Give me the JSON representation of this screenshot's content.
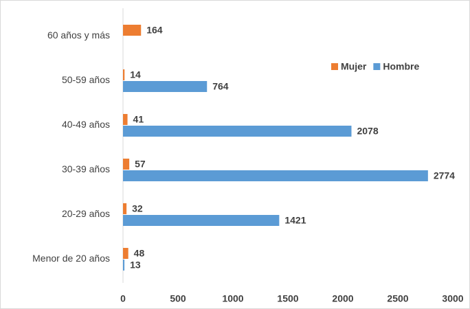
{
  "chart_data": {
    "type": "bar",
    "orientation": "horizontal",
    "categories": [
      "60 años y más",
      "50-59 años",
      "40-49 años",
      "30-39 años",
      "20-29 años",
      "Menor de 20 años"
    ],
    "series": [
      {
        "name": "Mujer",
        "color": "#ed7d31",
        "values": [
          164,
          14,
          41,
          57,
          32,
          48
        ]
      },
      {
        "name": "Hombre",
        "color": "#5b9bd5",
        "values": [
          null,
          764,
          2078,
          2774,
          1421,
          13
        ]
      }
    ],
    "xlim": [
      0,
      3000
    ],
    "xticks": [
      0,
      500,
      1000,
      1500,
      2000,
      2500,
      3000
    ],
    "legend": "upper-right"
  }
}
